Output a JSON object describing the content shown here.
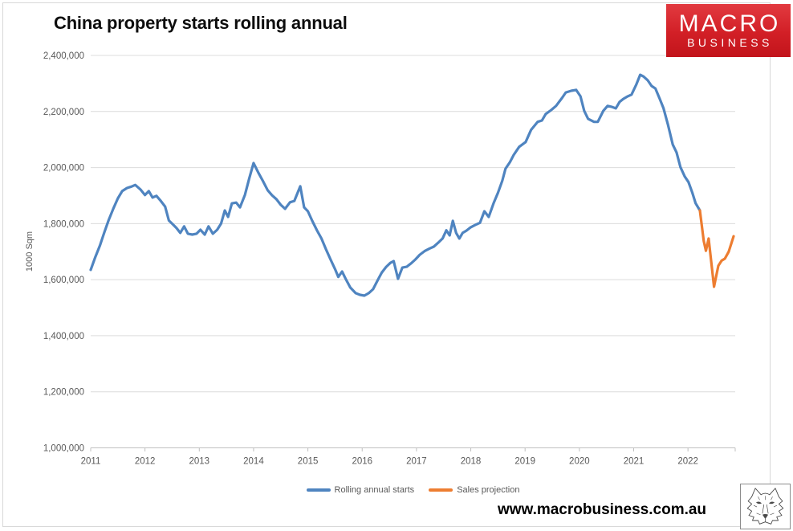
{
  "logo": {
    "line1": "MACRO",
    "line2": "BUSINESS",
    "bg_color": "#d21f26"
  },
  "footer": {
    "url": "www.macrobusiness.com.au",
    "wolf_icon": "wolf-sketch-icon"
  },
  "colors": {
    "series_blue": "#4f84c0",
    "series_orange": "#ed7d31",
    "gridline": "#dcdcdc",
    "axis_line": "#c0c0c0",
    "tick_text": "#595959",
    "title_text": "#0d0d0d"
  },
  "chart_data": {
    "type": "line",
    "title": "China property starts rolling annual",
    "xlabel": "",
    "ylabel": "1000 Sqm",
    "ylim": [
      1000000,
      2400000
    ],
    "xlim": [
      2011,
      2022.87
    ],
    "grid": true,
    "legend_position": "bottom-center",
    "yticks": [
      1000000,
      1200000,
      1400000,
      1600000,
      1800000,
      2000000,
      2200000,
      2400000
    ],
    "ytick_labels": [
      "1,000,000",
      "1,200,000",
      "1,400,000",
      "1,600,000",
      "1,800,000",
      "2,000,000",
      "2,200,000",
      "2,400,000"
    ],
    "xticks": [
      2011,
      2012,
      2013,
      2014,
      2015,
      2016,
      2017,
      2018,
      2019,
      2020,
      2021,
      2022
    ],
    "xtick_labels": [
      "2011",
      "2012",
      "2013",
      "2014",
      "2015",
      "2016",
      "2017",
      "2018",
      "2019",
      "2020",
      "2021",
      "2022"
    ],
    "series": [
      {
        "name": "Rolling annual starts",
        "color": "#4f84c0",
        "points": [
          [
            2011.0,
            1635000
          ],
          [
            2011.08,
            1678000
          ],
          [
            2011.17,
            1722000
          ],
          [
            2011.25,
            1768000
          ],
          [
            2011.33,
            1812000
          ],
          [
            2011.42,
            1855000
          ],
          [
            2011.5,
            1890000
          ],
          [
            2011.58,
            1916000
          ],
          [
            2011.67,
            1927000
          ],
          [
            2011.75,
            1932000
          ],
          [
            2011.82,
            1938000
          ],
          [
            2011.92,
            1921000
          ],
          [
            2012.0,
            1902000
          ],
          [
            2012.07,
            1916000
          ],
          [
            2012.14,
            1893000
          ],
          [
            2012.21,
            1899000
          ],
          [
            2012.29,
            1881000
          ],
          [
            2012.37,
            1861000
          ],
          [
            2012.44,
            1811000
          ],
          [
            2012.51,
            1798000
          ],
          [
            2012.58,
            1784000
          ],
          [
            2012.65,
            1767000
          ],
          [
            2012.72,
            1790000
          ],
          [
            2012.79,
            1764000
          ],
          [
            2012.87,
            1761000
          ],
          [
            2012.95,
            1764000
          ],
          [
            2013.02,
            1778000
          ],
          [
            2013.1,
            1761000
          ],
          [
            2013.17,
            1790000
          ],
          [
            2013.25,
            1764000
          ],
          [
            2013.33,
            1778000
          ],
          [
            2013.4,
            1800000
          ],
          [
            2013.47,
            1847000
          ],
          [
            2013.53,
            1824000
          ],
          [
            2013.6,
            1872000
          ],
          [
            2013.68,
            1875000
          ],
          [
            2013.75,
            1858000
          ],
          [
            2013.84,
            1902000
          ],
          [
            2013.92,
            1961000
          ],
          [
            2014.0,
            2016000
          ],
          [
            2014.09,
            1981000
          ],
          [
            2014.17,
            1953000
          ],
          [
            2014.26,
            1919000
          ],
          [
            2014.34,
            1901000
          ],
          [
            2014.42,
            1887000
          ],
          [
            2014.5,
            1867000
          ],
          [
            2014.58,
            1853000
          ],
          [
            2014.67,
            1876000
          ],
          [
            2014.75,
            1881000
          ],
          [
            2014.86,
            1933000
          ],
          [
            2014.93,
            1858000
          ],
          [
            2015.0,
            1844000
          ],
          [
            2015.08,
            1810000
          ],
          [
            2015.17,
            1775000
          ],
          [
            2015.25,
            1747000
          ],
          [
            2015.33,
            1710000
          ],
          [
            2015.42,
            1671000
          ],
          [
            2015.5,
            1638000
          ],
          [
            2015.56,
            1610000
          ],
          [
            2015.63,
            1629000
          ],
          [
            2015.7,
            1601000
          ],
          [
            2015.78,
            1572000
          ],
          [
            2015.88,
            1552000
          ],
          [
            2015.96,
            1546000
          ],
          [
            2016.04,
            1543000
          ],
          [
            2016.12,
            1552000
          ],
          [
            2016.2,
            1566000
          ],
          [
            2016.28,
            1596000
          ],
          [
            2016.36,
            1625000
          ],
          [
            2016.44,
            1645000
          ],
          [
            2016.52,
            1660000
          ],
          [
            2016.58,
            1666000
          ],
          [
            2016.66,
            1603000
          ],
          [
            2016.74,
            1643000
          ],
          [
            2016.82,
            1646000
          ],
          [
            2016.9,
            1658000
          ],
          [
            2016.98,
            1672000
          ],
          [
            2017.06,
            1689000
          ],
          [
            2017.15,
            1702000
          ],
          [
            2017.24,
            1711000
          ],
          [
            2017.32,
            1718000
          ],
          [
            2017.4,
            1732000
          ],
          [
            2017.48,
            1747000
          ],
          [
            2017.55,
            1776000
          ],
          [
            2017.61,
            1758000
          ],
          [
            2017.67,
            1810000
          ],
          [
            2017.73,
            1767000
          ],
          [
            2017.79,
            1747000
          ],
          [
            2017.85,
            1767000
          ],
          [
            2017.92,
            1775000
          ],
          [
            2018.0,
            1787000
          ],
          [
            2018.08,
            1795000
          ],
          [
            2018.17,
            1803000
          ],
          [
            2018.25,
            1844000
          ],
          [
            2018.33,
            1824000
          ],
          [
            2018.42,
            1873000
          ],
          [
            2018.5,
            1910000
          ],
          [
            2018.58,
            1953000
          ],
          [
            2018.64,
            1996000
          ],
          [
            2018.72,
            2019000
          ],
          [
            2018.79,
            2045000
          ],
          [
            2018.89,
            2074000
          ],
          [
            2019.01,
            2091000
          ],
          [
            2019.11,
            2134000
          ],
          [
            2019.23,
            2163000
          ],
          [
            2019.31,
            2168000
          ],
          [
            2019.38,
            2191000
          ],
          [
            2019.48,
            2205000
          ],
          [
            2019.57,
            2220000
          ],
          [
            2019.68,
            2248000
          ],
          [
            2019.75,
            2268000
          ],
          [
            2019.85,
            2274000
          ],
          [
            2019.94,
            2277000
          ],
          [
            2020.02,
            2254000
          ],
          [
            2020.09,
            2202000
          ],
          [
            2020.16,
            2174000
          ],
          [
            2020.27,
            2163000
          ],
          [
            2020.34,
            2163000
          ],
          [
            2020.44,
            2202000
          ],
          [
            2020.52,
            2220000
          ],
          [
            2020.59,
            2217000
          ],
          [
            2020.67,
            2211000
          ],
          [
            2020.74,
            2234000
          ],
          [
            2020.81,
            2245000
          ],
          [
            2020.89,
            2254000
          ],
          [
            2020.96,
            2260000
          ],
          [
            2021.05,
            2297000
          ],
          [
            2021.12,
            2331000
          ],
          [
            2021.18,
            2325000
          ],
          [
            2021.26,
            2311000
          ],
          [
            2021.33,
            2291000
          ],
          [
            2021.4,
            2282000
          ],
          [
            2021.48,
            2245000
          ],
          [
            2021.55,
            2211000
          ],
          [
            2021.63,
            2154000
          ],
          [
            2021.72,
            2082000
          ],
          [
            2021.79,
            2054000
          ],
          [
            2021.86,
            2002000
          ],
          [
            2021.94,
            1968000
          ],
          [
            2022.01,
            1948000
          ],
          [
            2022.08,
            1910000
          ],
          [
            2022.14,
            1873000
          ],
          [
            2022.22,
            1847000
          ]
        ]
      },
      {
        "name": "Sales projection",
        "color": "#ed7d31",
        "points": [
          [
            2022.22,
            1847000
          ],
          [
            2022.29,
            1738000
          ],
          [
            2022.33,
            1703000
          ],
          [
            2022.38,
            1747000
          ],
          [
            2022.48,
            1575000
          ],
          [
            2022.56,
            1650000
          ],
          [
            2022.62,
            1668000
          ],
          [
            2022.68,
            1675000
          ],
          [
            2022.75,
            1700000
          ],
          [
            2022.84,
            1755000
          ]
        ]
      }
    ]
  }
}
